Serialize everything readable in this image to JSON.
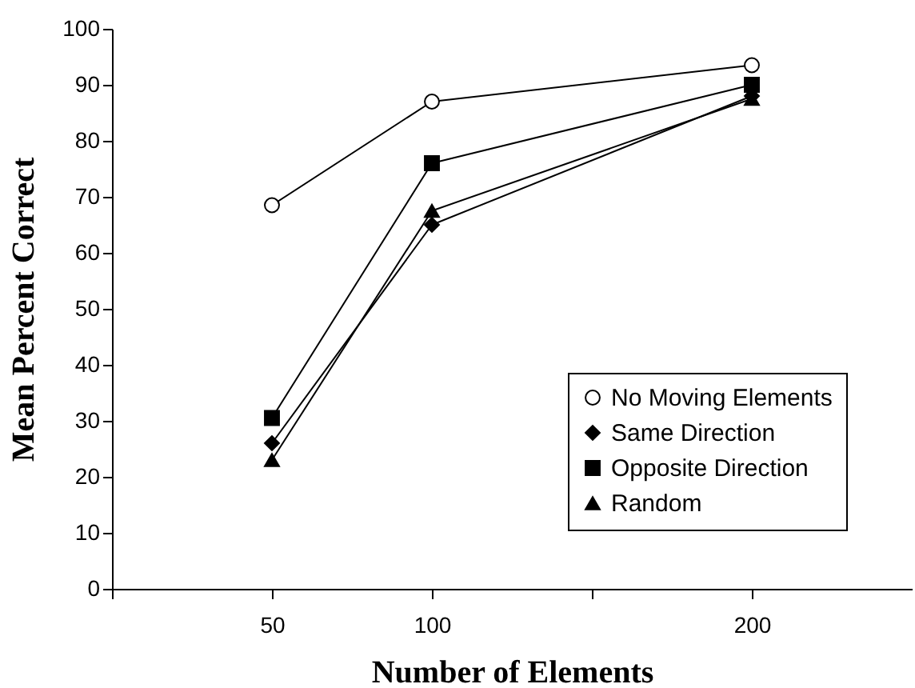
{
  "chart_data": {
    "type": "line",
    "xlabel": "Number of Elements",
    "ylabel": "Mean Percent Correct",
    "x": [
      50,
      100,
      200
    ],
    "series": [
      {
        "name": "No Moving Elements",
        "color": "#000000",
        "marker": "circle",
        "values": [
          68.5,
          87,
          93.5
        ]
      },
      {
        "name": "Same Direction",
        "color": "#000000",
        "marker": "diamond",
        "values": [
          26,
          65,
          88
        ]
      },
      {
        "name": "Opposite Direction",
        "color": "#000000",
        "marker": "square",
        "values": [
          30.5,
          76,
          90
        ]
      },
      {
        "name": "Random",
        "color": "#000000",
        "marker": "triangle",
        "values": [
          23,
          67.5,
          87.5
        ]
      }
    ],
    "xlim": [
      0,
      250
    ],
    "xticks": [
      {
        "value": 0,
        "label": null
      },
      50,
      100,
      {
        "value": 150,
        "label": null
      },
      200
    ],
    "ylim": [
      0,
      100
    ],
    "yticks": [
      0,
      10,
      20,
      30,
      40,
      50,
      60,
      70,
      80,
      90,
      100
    ],
    "grid": false,
    "legend": "bottom right"
  }
}
